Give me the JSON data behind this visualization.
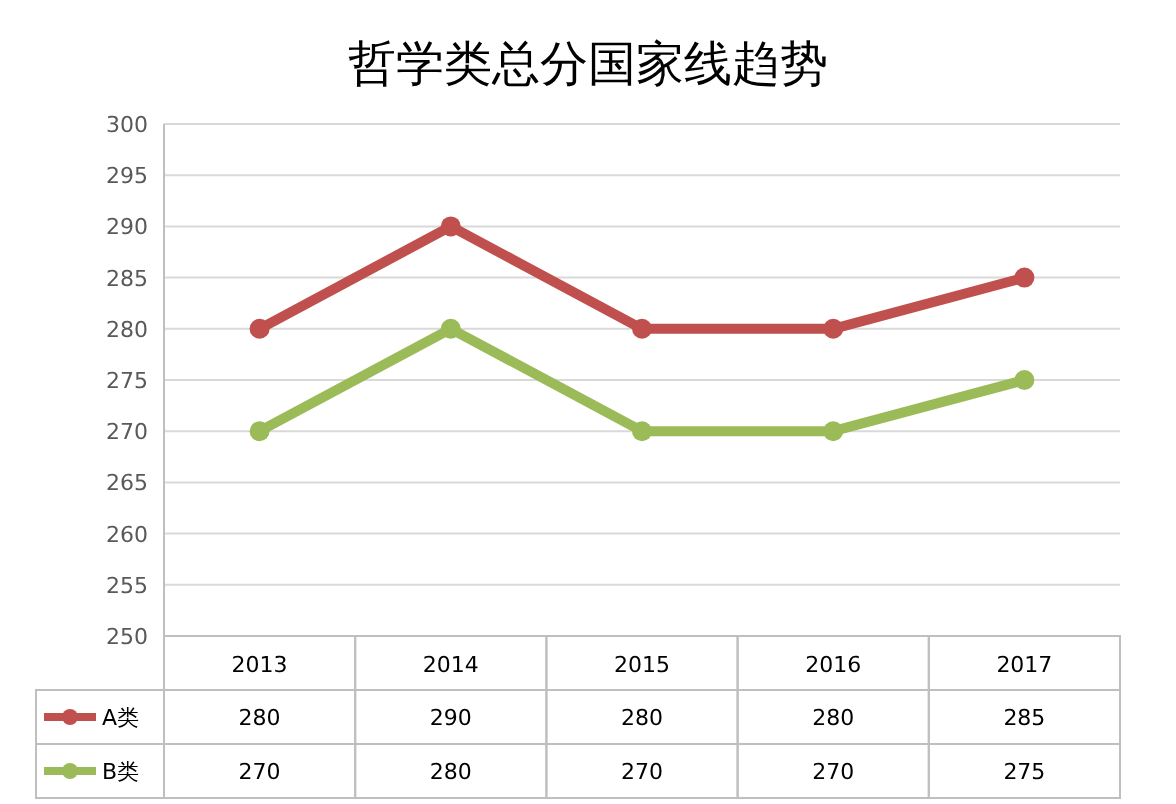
{
  "chart_data": {
    "type": "line",
    "title": "哲学类总分国家线趋势",
    "categories": [
      "2013",
      "2014",
      "2015",
      "2016",
      "2017"
    ],
    "series": [
      {
        "name": "A类",
        "color": "#c0504d",
        "values": [
          280,
          290,
          280,
          280,
          285
        ]
      },
      {
        "name": "B类",
        "color": "#9bbb59",
        "values": [
          270,
          280,
          270,
          270,
          275
        ]
      }
    ],
    "ylim": [
      250,
      300
    ],
    "yticks": [
      250,
      255,
      260,
      265,
      270,
      275,
      280,
      285,
      290,
      295,
      300
    ],
    "grid": "y",
    "marker": "circle",
    "line_style": "solid",
    "data_labels": true,
    "legend": "bottom"
  }
}
